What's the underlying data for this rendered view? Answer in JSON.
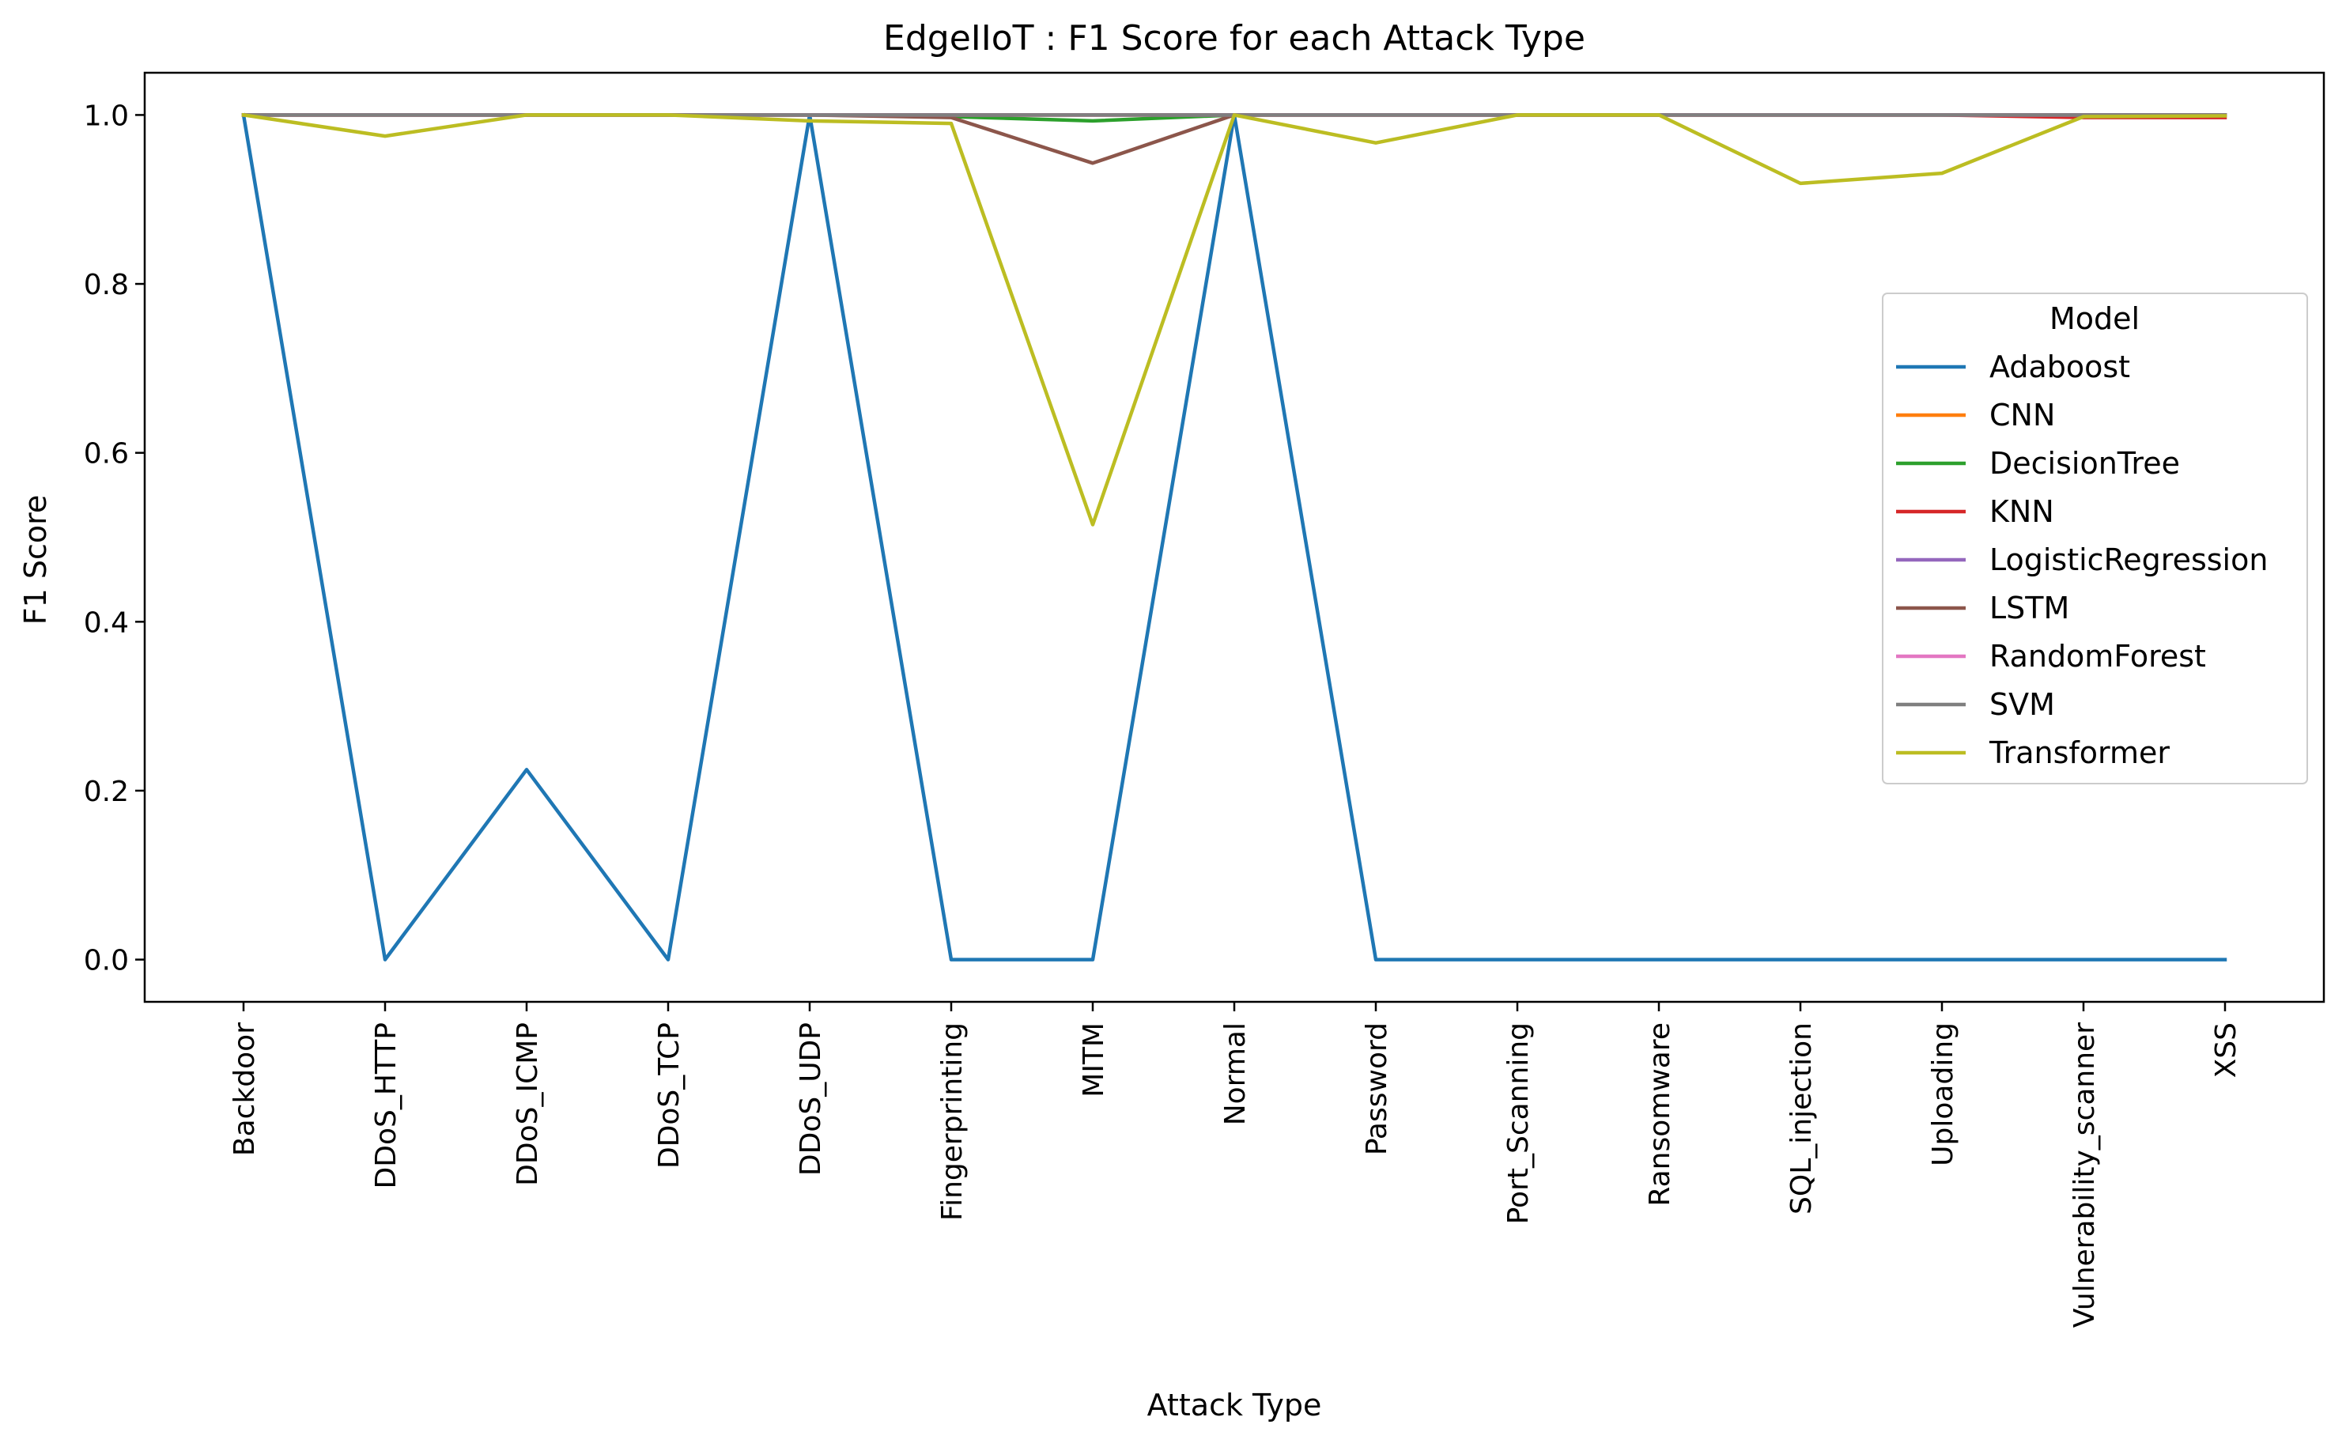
{
  "chart_data": {
    "type": "line",
    "title": "EdgeIIoT : F1 Score for each Attack Type",
    "xlabel": "Attack Type",
    "ylabel": "F1 Score",
    "ylim": [
      -0.05,
      1.05
    ],
    "yticks": [
      0.0,
      0.2,
      0.4,
      0.6,
      0.8,
      1.0
    ],
    "ytick_labels": [
      "0.0",
      "0.2",
      "0.4",
      "0.6",
      "0.8",
      "1.0"
    ],
    "grid": false,
    "legend": {
      "title": "Model",
      "placement": "center-right"
    },
    "categories": [
      "Backdoor",
      "DDoS_HTTP",
      "DDoS_ICMP",
      "DDoS_TCP",
      "DDoS_UDP",
      "Fingerprinting",
      "MITM",
      "Normal",
      "Password",
      "Port_Scanning",
      "Ransomware",
      "SQL_injection",
      "Uploading",
      "Vulnerability_scanner",
      "XSS"
    ],
    "series": [
      {
        "name": "Adaboost",
        "color": "#1f77b4",
        "values": [
          1.0,
          0.0,
          0.225,
          0.0,
          1.0,
          0.0,
          0.0,
          1.0,
          0.0,
          0.0,
          0.0,
          0.0,
          0.0,
          0.0,
          0.0
        ]
      },
      {
        "name": "CNN",
        "color": "#ff7f0e",
        "values": [
          1.0,
          1.0,
          1.0,
          1.0,
          1.0,
          1.0,
          1.0,
          1.0,
          1.0,
          1.0,
          1.0,
          1.0,
          1.0,
          1.0,
          1.0
        ]
      },
      {
        "name": "DecisionTree",
        "color": "#2ca02c",
        "values": [
          1.0,
          1.0,
          1.0,
          1.0,
          1.0,
          0.998,
          0.993,
          1.0,
          1.0,
          1.0,
          1.0,
          1.0,
          1.0,
          1.0,
          1.0
        ]
      },
      {
        "name": "KNN",
        "color": "#d62728",
        "values": [
          1.0,
          1.0,
          1.0,
          1.0,
          1.0,
          1.0,
          1.0,
          1.0,
          1.0,
          1.0,
          1.0,
          1.0,
          1.0,
          0.997,
          0.997
        ]
      },
      {
        "name": "LogisticRegression",
        "color": "#9467bd",
        "values": [
          1.0,
          1.0,
          1.0,
          1.0,
          1.0,
          1.0,
          1.0,
          1.0,
          1.0,
          1.0,
          1.0,
          1.0,
          1.0,
          1.0,
          1.0
        ]
      },
      {
        "name": "LSTM",
        "color": "#8c564b",
        "values": [
          1.0,
          1.0,
          1.0,
          1.0,
          1.0,
          0.997,
          0.943,
          1.0,
          1.0,
          1.0,
          1.0,
          1.0,
          1.0,
          1.0,
          1.0
        ]
      },
      {
        "name": "RandomForest",
        "color": "#e377c2",
        "values": [
          1.0,
          1.0,
          1.0,
          1.0,
          1.0,
          1.0,
          1.0,
          1.0,
          1.0,
          1.0,
          1.0,
          1.0,
          1.0,
          1.0,
          1.0
        ]
      },
      {
        "name": "SVM",
        "color": "#7f7f7f",
        "values": [
          1.0,
          1.0,
          1.0,
          1.0,
          1.0,
          1.0,
          1.0,
          1.0,
          1.0,
          1.0,
          1.0,
          1.0,
          1.0,
          1.0,
          1.0
        ]
      },
      {
        "name": "Transformer",
        "color": "#bcbd22",
        "values": [
          1.0,
          0.975,
          1.0,
          1.0,
          0.993,
          0.99,
          0.515,
          1.0,
          0.967,
          1.0,
          1.0,
          0.919,
          0.931,
          0.998,
          0.999
        ]
      }
    ]
  }
}
